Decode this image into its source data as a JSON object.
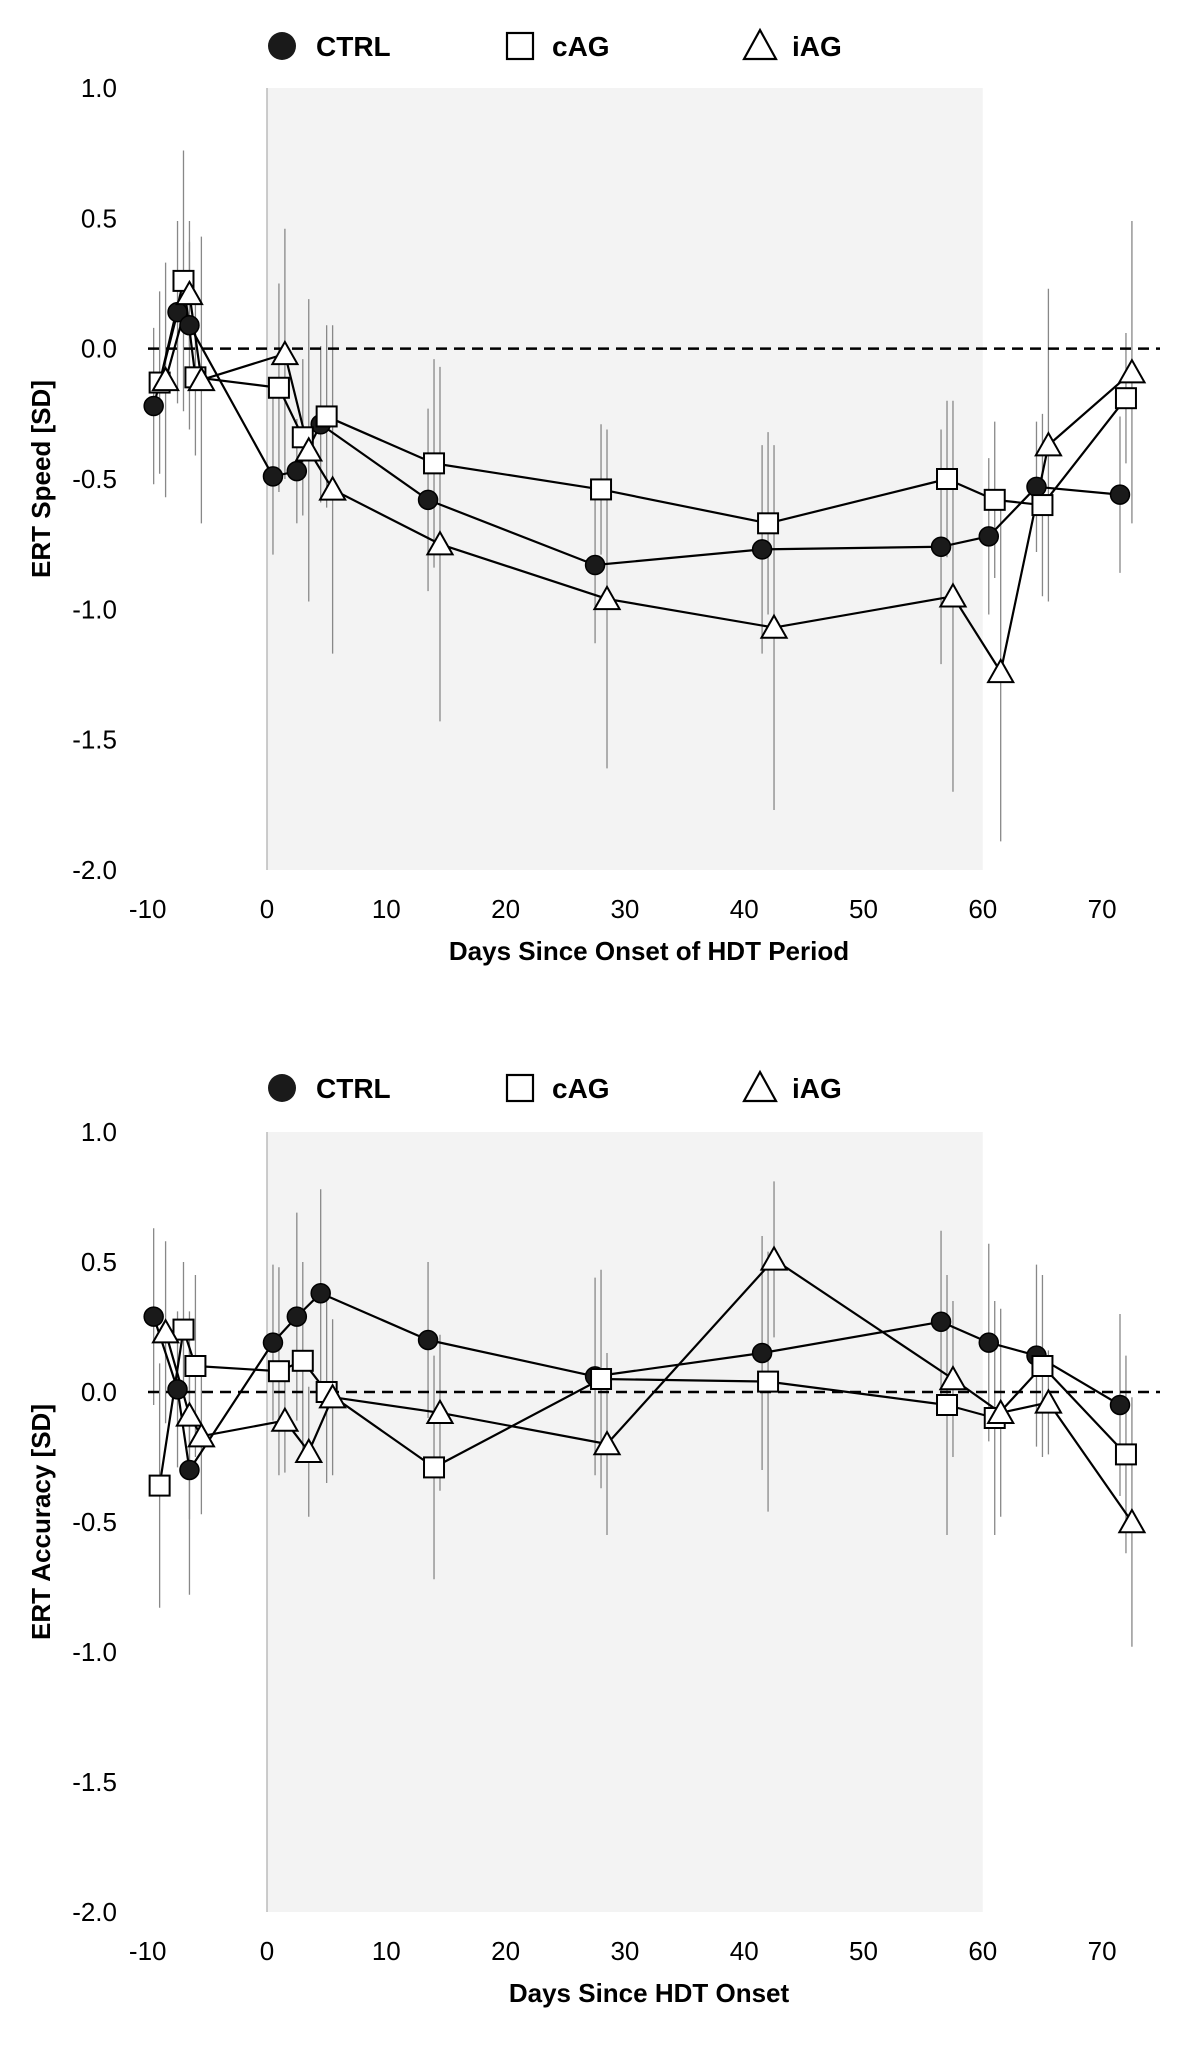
{
  "colors": {
    "shade": "#f3f3f3",
    "line": "#000000",
    "errorbar": "#888888",
    "axis": "#bbbbbb",
    "marker_fill_open": "#ffffff",
    "marker_fill_ctrl": "#1a1a1a"
  },
  "chart_data": [
    {
      "type": "line",
      "ylabel": "ERT Speed [SD]",
      "xlabel": "Days Since Onset of HDT Period",
      "xlim": [
        -10,
        75
      ],
      "ylim": [
        -2.0,
        1.0
      ],
      "xticks": [
        -10,
        0,
        10,
        20,
        30,
        40,
        50,
        60,
        70
      ],
      "xtick_labels": [
        "-10",
        "0",
        "10",
        "20",
        "30",
        "40",
        "50",
        "60",
        "70"
      ],
      "yticks": [
        -2.0,
        -1.5,
        -1.0,
        -0.5,
        0.0,
        0.5,
        1.0
      ],
      "ytick_labels": [
        "-2.0",
        "-1.5",
        "-1.0",
        "-0.5",
        "0.0",
        "0.5",
        "1.0"
      ],
      "shaded_x": [
        0,
        60
      ],
      "reference_y": 0,
      "legend": [
        {
          "name": "CTRL",
          "marker": "circle"
        },
        {
          "name": "cAG",
          "marker": "square"
        },
        {
          "name": "iAG",
          "marker": "triangle"
        }
      ],
      "series": [
        {
          "name": "CTRL",
          "marker": "circle",
          "x": [
            -9.5,
            -7.5,
            -6.5,
            0.5,
            2.5,
            4.5,
            13.5,
            27.5,
            41.5,
            56.5,
            60.5,
            64.5,
            71.5
          ],
          "y": [
            -0.22,
            0.14,
            0.09,
            -0.49,
            -0.47,
            -0.29,
            -0.58,
            -0.83,
            -0.77,
            -0.76,
            -0.72,
            -0.53,
            -0.56
          ],
          "err": [
            0.3,
            0.35,
            0.4,
            0.3,
            0.2,
            0.3,
            0.35,
            0.3,
            0.4,
            0.45,
            0.3,
            0.25,
            0.3
          ]
        },
        {
          "name": "cAG",
          "marker": "square",
          "x": [
            -9.0,
            -7.0,
            -6.0,
            1.0,
            3.0,
            5.0,
            14.0,
            28.0,
            42.0,
            57.0,
            61.0,
            65.0,
            72.0
          ],
          "y": [
            -0.13,
            0.26,
            -0.11,
            -0.15,
            -0.34,
            -0.26,
            -0.44,
            -0.54,
            -0.67,
            -0.5,
            -0.58,
            -0.6,
            -0.19
          ],
          "err": [
            0.35,
            0.5,
            0.3,
            0.4,
            0.3,
            0.35,
            0.4,
            0.25,
            0.35,
            0.3,
            0.3,
            0.35,
            0.25
          ]
        },
        {
          "name": "iAG",
          "marker": "triangle",
          "x": [
            -8.5,
            -6.5,
            -5.5,
            1.5,
            3.5,
            5.5,
            14.5,
            28.5,
            42.5,
            57.5,
            61.5,
            65.5,
            72.5
          ],
          "y": [
            -0.12,
            0.21,
            -0.12,
            -0.02,
            -0.39,
            -0.54,
            -0.75,
            -0.96,
            -1.07,
            -0.95,
            -1.24,
            -0.37,
            -0.09
          ],
          "err": [
            0.45,
            0.2,
            0.55,
            0.48,
            0.58,
            0.63,
            0.68,
            0.65,
            0.7,
            0.75,
            0.65,
            0.6,
            0.58
          ]
        }
      ]
    },
    {
      "type": "line",
      "ylabel": "ERT Accuracy [SD]",
      "xlabel": "Days Since HDT Onset",
      "xlim": [
        -10,
        75
      ],
      "ylim": [
        -2.0,
        1.0
      ],
      "xticks": [
        -10,
        0,
        10,
        20,
        30,
        40,
        50,
        60,
        70
      ],
      "xtick_labels": [
        "-10",
        "0",
        "10",
        "20",
        "30",
        "40",
        "50",
        "60",
        "70"
      ],
      "yticks": [
        -2.0,
        -1.5,
        -1.0,
        -0.5,
        0.0,
        0.5,
        1.0
      ],
      "ytick_labels": [
        "-2.0",
        "-1.5",
        "-1.0",
        "-0.5",
        "0.0",
        "0.5",
        "1.0"
      ],
      "shaded_x": [
        0,
        60
      ],
      "reference_y": 0,
      "legend": [
        {
          "name": "CTRL",
          "marker": "circle"
        },
        {
          "name": "cAG",
          "marker": "square"
        },
        {
          "name": "iAG",
          "marker": "triangle"
        }
      ],
      "series": [
        {
          "name": "CTRL",
          "marker": "circle",
          "x": [
            -9.5,
            -7.5,
            -6.5,
            0.5,
            2.5,
            4.5,
            13.5,
            27.5,
            41.5,
            56.5,
            60.5,
            64.5,
            71.5
          ],
          "y": [
            0.29,
            0.01,
            -0.3,
            0.19,
            0.29,
            0.38,
            0.2,
            0.06,
            0.15,
            0.27,
            0.19,
            0.14,
            -0.05
          ],
          "err": [
            0.34,
            0.3,
            0.48,
            0.3,
            0.4,
            0.4,
            0.3,
            0.38,
            0.45,
            0.35,
            0.38,
            0.35,
            0.35
          ]
        },
        {
          "name": "cAG",
          "marker": "square",
          "x": [
            -9.0,
            -7.0,
            -6.0,
            1.0,
            3.0,
            5.0,
            14.0,
            28.0,
            42.0,
            57.0,
            61.0,
            65.0,
            72.0
          ],
          "y": [
            -0.36,
            0.24,
            0.1,
            0.08,
            0.12,
            0.0,
            -0.29,
            0.05,
            0.04,
            -0.05,
            -0.1,
            0.1,
            -0.24
          ],
          "err": [
            0.47,
            0.26,
            0.35,
            0.4,
            0.38,
            0.35,
            0.43,
            0.42,
            0.5,
            0.5,
            0.45,
            0.35,
            0.38
          ]
        },
        {
          "name": "iAG",
          "marker": "triangle",
          "x": [
            -8.5,
            -6.5,
            -5.5,
            1.5,
            3.5,
            5.5,
            14.5,
            28.5,
            42.5,
            57.5,
            61.5,
            65.5,
            72.5
          ],
          "y": [
            0.23,
            -0.09,
            -0.17,
            -0.11,
            -0.23,
            -0.02,
            -0.08,
            -0.2,
            0.51,
            0.05,
            -0.08,
            -0.04,
            -0.5
          ],
          "err": [
            0.35,
            0.4,
            0.3,
            0.2,
            0.25,
            0.3,
            0.3,
            0.35,
            0.3,
            0.3,
            0.4,
            0.2,
            0.48
          ]
        }
      ]
    }
  ]
}
